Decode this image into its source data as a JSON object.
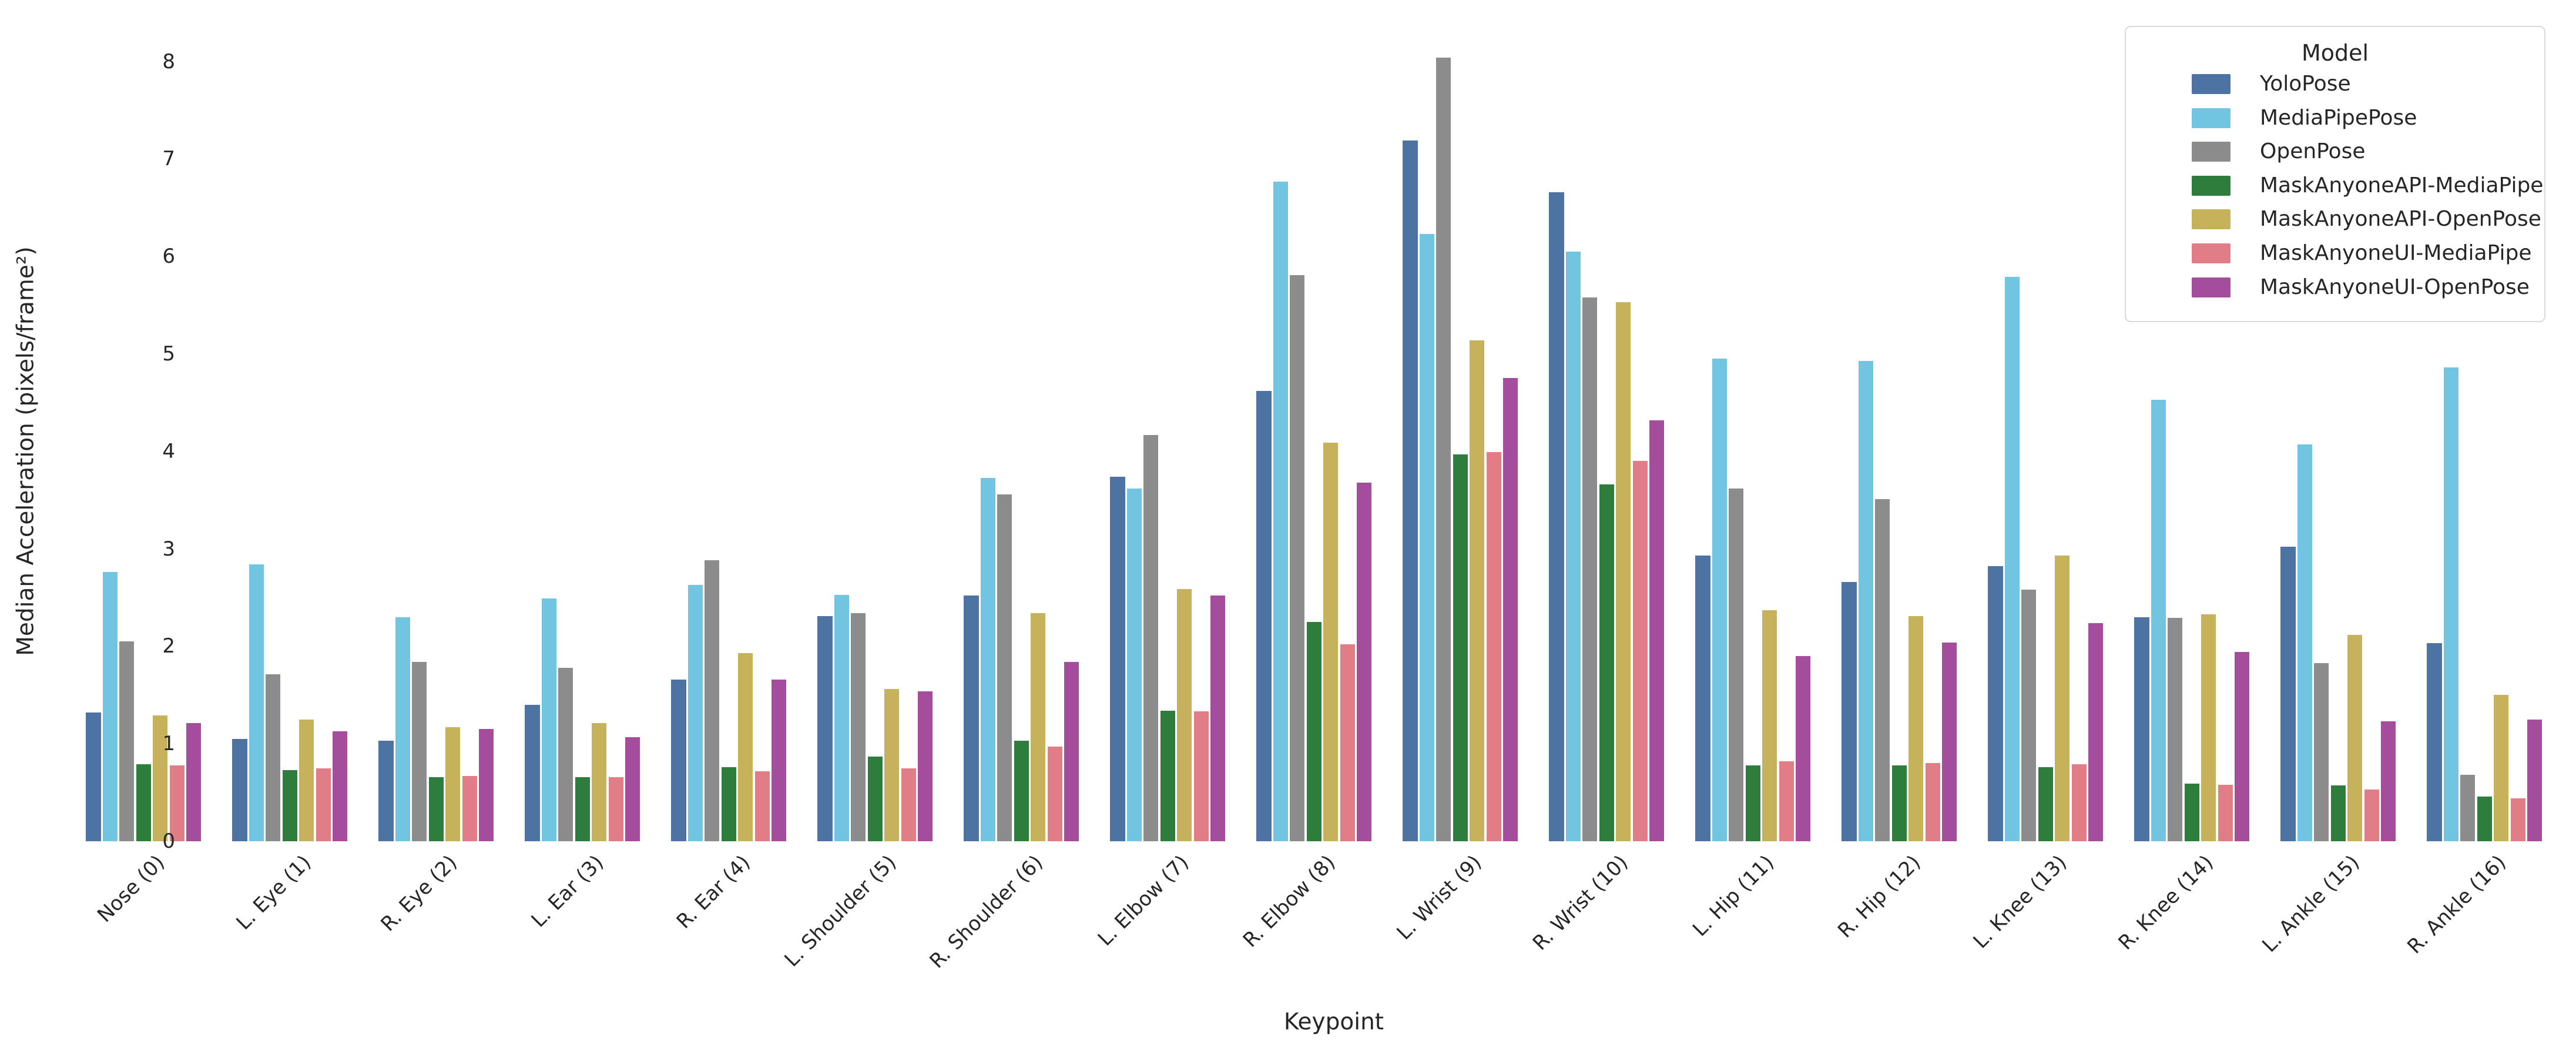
{
  "figure": {
    "background_color": "#ffffff",
    "text_color": "#262626"
  },
  "axes": {
    "ylabel": "Median Acceleration (pixels/frame²)",
    "xlabel": "Keypoint",
    "y_ticks": [
      "0",
      "1",
      "2",
      "3",
      "4",
      "5",
      "6",
      "7",
      "8"
    ],
    "grid": false,
    "spines": false
  },
  "legend": {
    "title": "Model",
    "position": "top-right",
    "entries": [
      {
        "label": "YoloPose",
        "color": "#4c73a2"
      },
      {
        "label": "MediaPipePose",
        "color": "#72c5e1"
      },
      {
        "label": "OpenPose",
        "color": "#8c8c8c"
      },
      {
        "label": "MaskAnyoneAPI-MediaPipe",
        "color": "#2f7d3c"
      },
      {
        "label": "MaskAnyoneAPI-OpenPose",
        "color": "#c7b25c"
      },
      {
        "label": "MaskAnyoneUI-MediaPipe",
        "color": "#e07d86"
      },
      {
        "label": "MaskAnyoneUI-OpenPose",
        "color": "#a44d9d"
      }
    ]
  },
  "chart_data": {
    "type": "bar",
    "title": "",
    "xlabel": "Keypoint",
    "ylabel": "Median Acceleration (pixels/frame²)",
    "ylim": [
      0,
      8.4
    ],
    "legend_position": "upper right",
    "grid": false,
    "categories": [
      "Nose (0)",
      "L. Eye (1)",
      "R. Eye (2)",
      "L. Ear (3)",
      "R. Ear (4)",
      "L. Shoulder (5)",
      "R. Shoulder (6)",
      "L. Elbow (7)",
      "R. Elbow (8)",
      "L. Wrist (9)",
      "R. Wrist (10)",
      "L. Hip (11)",
      "R. Hip (12)",
      "L. Knee (13)",
      "R. Knee (14)",
      "L. Ankle (15)",
      "R. Ankle (16)"
    ],
    "series": [
      {
        "name": "YoloPose",
        "color": "#4c73a2",
        "values": [
          1.32,
          1.05,
          1.03,
          1.4,
          1.66,
          2.31,
          2.52,
          3.74,
          4.62,
          7.19,
          6.66,
          2.93,
          2.66,
          2.82,
          2.3,
          3.02,
          2.03
        ]
      },
      {
        "name": "MediaPipePose",
        "color": "#72c5e1",
        "values": [
          2.76,
          2.84,
          2.3,
          2.49,
          2.63,
          2.53,
          3.73,
          3.62,
          6.77,
          6.23,
          6.05,
          4.95,
          4.93,
          5.79,
          4.53,
          4.07,
          4.86
        ]
      },
      {
        "name": "OpenPose",
        "color": "#8c8c8c",
        "values": [
          2.05,
          1.71,
          1.84,
          1.78,
          2.88,
          2.34,
          3.56,
          4.17,
          5.81,
          8.04,
          5.58,
          3.62,
          3.51,
          2.58,
          2.29,
          1.83,
          0.68
        ]
      },
      {
        "name": "MaskAnyoneAPI-MediaPipe",
        "color": "#2f7d3c",
        "values": [
          0.79,
          0.73,
          0.66,
          0.66,
          0.76,
          0.87,
          1.03,
          1.34,
          2.25,
          3.97,
          3.66,
          0.78,
          0.78,
          0.76,
          0.59,
          0.57,
          0.46
        ]
      },
      {
        "name": "MaskAnyoneAPI-OpenPose",
        "color": "#c7b25c",
        "values": [
          1.29,
          1.25,
          1.17,
          1.21,
          1.93,
          1.56,
          2.34,
          2.59,
          4.09,
          5.14,
          5.53,
          2.37,
          2.31,
          2.93,
          2.33,
          2.12,
          1.5
        ]
      },
      {
        "name": "MaskAnyoneUI-MediaPipe",
        "color": "#e07d86",
        "values": [
          0.78,
          0.75,
          0.67,
          0.66,
          0.72,
          0.75,
          0.97,
          1.33,
          2.02,
          3.99,
          3.9,
          0.82,
          0.8,
          0.79,
          0.58,
          0.53,
          0.44
        ]
      },
      {
        "name": "MaskAnyoneUI-OpenPose",
        "color": "#a44d9d",
        "values": [
          1.21,
          1.13,
          1.15,
          1.07,
          1.66,
          1.54,
          1.84,
          2.52,
          3.68,
          4.75,
          4.32,
          1.9,
          2.04,
          2.24,
          1.94,
          1.23,
          1.25
        ]
      }
    ]
  }
}
